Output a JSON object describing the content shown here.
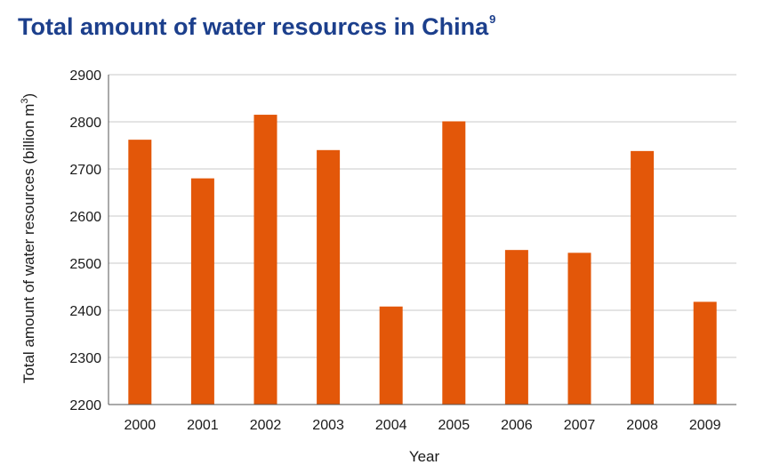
{
  "title_text": "Total amount of water resources in China",
  "title_footnote": "9",
  "chart_data": {
    "type": "bar",
    "title": "Total amount of water resources in China",
    "categories": [
      "2000",
      "2001",
      "2002",
      "2003",
      "2004",
      "2005",
      "2006",
      "2007",
      "2008",
      "2009"
    ],
    "series": [
      {
        "values": [
          2762,
          2680,
          2815,
          2740,
          2408,
          2801,
          2528,
          2522,
          2738,
          2418
        ]
      }
    ],
    "xlabel": "Year",
    "ylabel_text": "Total amount of water resources (billion m",
    "ylabel_unit_exponent": "3",
    "ylabel_close": ")",
    "ylim": [
      2200,
      2900
    ],
    "yticks": [
      2200,
      2300,
      2400,
      2500,
      2600,
      2700,
      2800,
      2900
    ],
    "grid": true,
    "legend": "none",
    "bar_color": "#e35709",
    "grid_color": "#c8c8c8",
    "axis_color": "#555555"
  }
}
